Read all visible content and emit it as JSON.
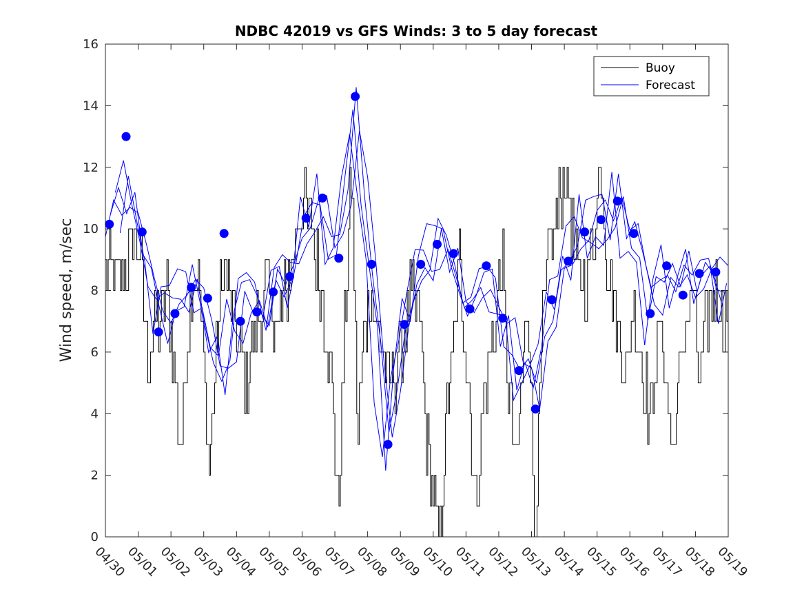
{
  "chart_data": {
    "type": "line",
    "title": "NDBC 42019 vs GFS Winds: 3 to 5 day forecast",
    "xlabel": "",
    "ylabel": "Wind speed, m/sec",
    "x_tick_labels": [
      "04/30",
      "05/01",
      "05/02",
      "05/03",
      "05/04",
      "05/05",
      "05/06",
      "05/07",
      "05/08",
      "05/09",
      "05/10",
      "05/11",
      "05/12",
      "05/13",
      "05/14",
      "05/15",
      "05/16",
      "05/17",
      "05/18",
      "05/19"
    ],
    "y_ticks": [
      0,
      2,
      4,
      6,
      8,
      10,
      12,
      14,
      16
    ],
    "xlim_days": [
      0,
      19
    ],
    "ylim": [
      0,
      16
    ],
    "grid": false,
    "legend_position": "top-right",
    "series": [
      {
        "name": "Buoy",
        "color": "#000000",
        "style": "step",
        "x": [
          0.0,
          0.5,
          0.85,
          1.05,
          1.3,
          1.6,
          1.9,
          2.1,
          2.3,
          2.5,
          2.8,
          3.0,
          3.15,
          3.3,
          3.6,
          3.9,
          4.1,
          4.3,
          4.6,
          4.9,
          5.3,
          5.7,
          6.0,
          6.3,
          6.6,
          6.9,
          7.1,
          7.3,
          7.5,
          7.7,
          7.9,
          8.1,
          8.4,
          8.7,
          9.0,
          9.3,
          9.6,
          9.8,
          10.0,
          10.2,
          10.4,
          10.6,
          10.8,
          11.0,
          11.3,
          11.6,
          11.9,
          12.1,
          12.3,
          12.5,
          12.7,
          12.9,
          13.1,
          13.3,
          13.5,
          13.7,
          13.9,
          14.1,
          14.3,
          14.6,
          14.9,
          15.1,
          15.3,
          15.6,
          15.9,
          16.1,
          16.3,
          16.6,
          16.9,
          17.1,
          17.3,
          17.6,
          17.9,
          18.1,
          18.3,
          18.6,
          18.9,
          19.0
        ],
        "y": [
          9,
          8,
          10,
          9,
          6,
          7,
          8,
          5,
          3,
          7,
          9,
          6,
          2,
          5,
          9,
          7,
          6,
          5,
          7,
          8,
          7,
          9,
          11,
          10,
          8,
          5,
          1,
          7,
          12,
          3,
          7,
          8,
          6,
          5,
          6,
          8,
          7,
          3,
          1,
          0,
          4,
          6,
          9,
          6,
          1,
          5,
          7,
          9,
          5,
          2,
          5,
          8,
          0,
          6,
          9,
          10,
          11,
          12,
          9,
          8,
          10,
          12,
          9,
          7,
          5,
          8,
          6,
          4,
          7,
          5,
          3,
          6,
          8,
          5,
          7,
          8,
          7,
          8
        ],
        "note": "hourly buoy observations (step pattern)"
      },
      {
        "name": "Forecast",
        "color": "#0000ff",
        "style": "line",
        "x": [
          0.1,
          0.6,
          1.1,
          1.6,
          2.1,
          2.6,
          3.1,
          3.6,
          4.1,
          4.6,
          5.1,
          5.6,
          6.1,
          6.6,
          7.1,
          7.6,
          8.1,
          8.6,
          9.1,
          9.6,
          10.1,
          10.6,
          11.1,
          11.6,
          12.1,
          12.6,
          13.1,
          13.6,
          14.1,
          14.6,
          15.1,
          15.6,
          16.1,
          16.6,
          17.1,
          17.6,
          18.1,
          18.6,
          19.0
        ],
        "y": [
          10.2,
          11.2,
          9.9,
          6.8,
          7.2,
          8.1,
          6.5,
          5.0,
          8.0,
          7.3,
          8.0,
          8.4,
          10.2,
          11.0,
          9.0,
          14.3,
          8.8,
          3.1,
          6.9,
          8.8,
          9.5,
          9.2,
          7.4,
          8.8,
          7.1,
          5.4,
          4.2,
          7.7,
          9.0,
          10.0,
          10.3,
          10.9,
          9.9,
          7.3,
          8.8,
          7.9,
          8.6,
          8.6,
          8.0
        ],
        "note": "multiple overlapping GFS forecast traces"
      },
      {
        "name": "",
        "color": "#0000ff",
        "style": "markers",
        "x": [
          0.12,
          0.63,
          1.12,
          1.62,
          2.12,
          2.62,
          3.12,
          3.62,
          4.12,
          4.62,
          5.12,
          5.62,
          6.12,
          6.62,
          7.12,
          7.62,
          8.12,
          8.62,
          9.12,
          9.62,
          10.12,
          10.62,
          11.12,
          11.62,
          12.12,
          12.62,
          13.12,
          13.62,
          14.12,
          14.62,
          15.12,
          15.62,
          16.12,
          16.62,
          17.12,
          17.62,
          18.12,
          18.62
        ],
        "y": [
          10.15,
          13.0,
          9.9,
          6.65,
          7.25,
          8.1,
          7.75,
          9.85,
          7.0,
          7.3,
          7.95,
          8.45,
          10.35,
          11.0,
          9.05,
          14.3,
          8.85,
          3.0,
          6.9,
          8.85,
          9.5,
          9.2,
          7.4,
          8.8,
          7.1,
          5.4,
          4.15,
          7.7,
          8.95,
          9.9,
          10.3,
          10.9,
          9.85,
          7.25,
          8.8,
          7.85,
          8.55,
          8.6
        ],
        "note": "forecast verification points"
      }
    ]
  }
}
